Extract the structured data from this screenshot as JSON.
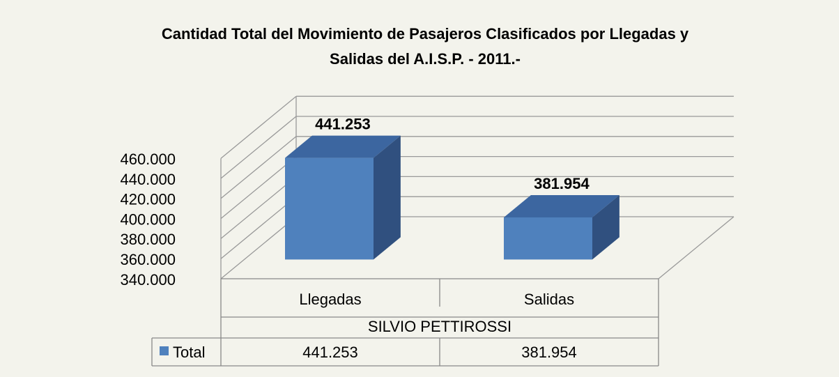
{
  "chart_data": {
    "type": "bar3d",
    "title": "Cantidad Total del Movimiento de Pasajeros Clasificados por Llegadas y",
    "subtitle": "Salidas del A.I.S.P. - 2011.-",
    "categories": [
      "Llegadas",
      "Salidas"
    ],
    "group": "SILVIO PETTIROSSI",
    "series": [
      {
        "name": "Total",
        "color": "#4f81bd",
        "values": [
          441253,
          381954
        ],
        "value_labels": [
          "441.253",
          "381.954"
        ]
      }
    ],
    "ylim": [
      340000,
      460000
    ],
    "yticks": [
      {
        "value": 340000,
        "label": "340.000"
      },
      {
        "value": 360000,
        "label": "360.000"
      },
      {
        "value": 380000,
        "label": "380.000"
      },
      {
        "value": 400000,
        "label": "400.000"
      },
      {
        "value": 420000,
        "label": "420.000"
      },
      {
        "value": 440000,
        "label": "440.000"
      },
      {
        "value": 460000,
        "label": "460.000"
      }
    ],
    "grid": true,
    "data_table": true
  }
}
